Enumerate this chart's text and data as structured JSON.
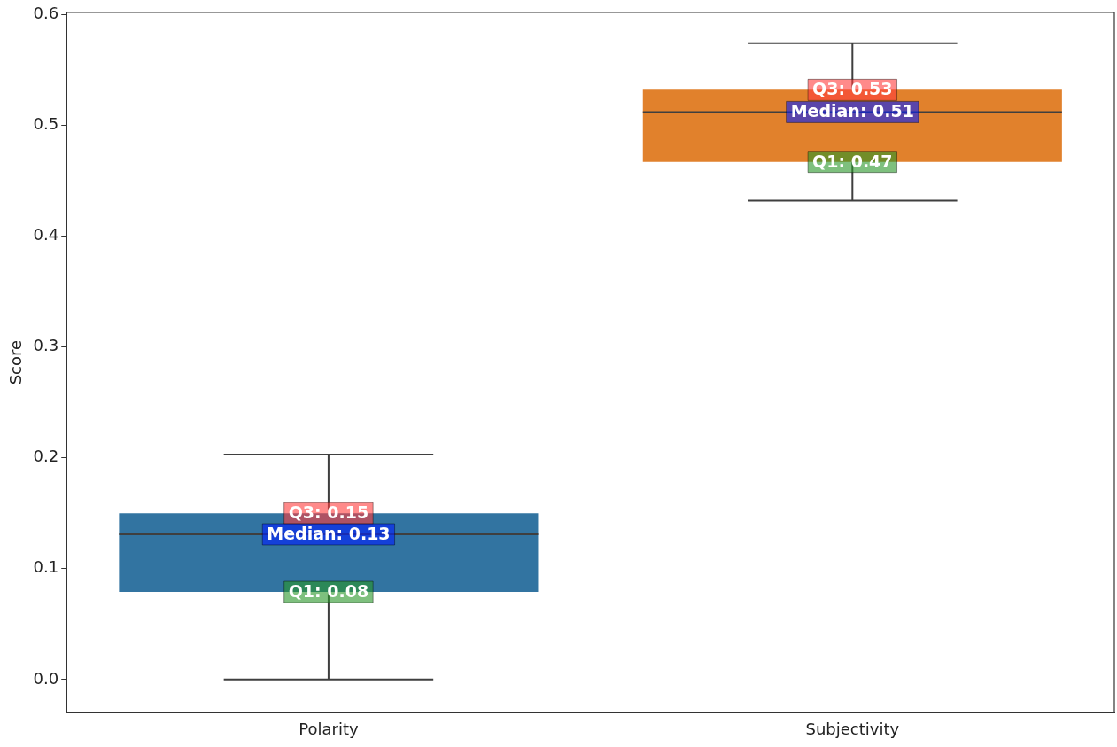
{
  "chart_data": {
    "type": "box",
    "ylabel": "Score",
    "categories": [
      "Polarity",
      "Subjectivity"
    ],
    "boxes": [
      {
        "low": 0.0,
        "q1": 0.079,
        "median": 0.131,
        "q3": 0.15,
        "high": 0.203
      },
      {
        "low": 0.432,
        "q1": 0.467,
        "median": 0.512,
        "q3": 0.532,
        "high": 0.574
      }
    ],
    "colors": [
      "#3274a1",
      "#e1812c"
    ],
    "ylim": [
      -0.03,
      0.602
    ],
    "yticks": [
      {
        "value": 0,
        "label": "0.0"
      },
      0.1,
      0.2,
      0.3,
      0.4,
      0.5,
      0.6
    ],
    "grid": false,
    "legend": false,
    "annotations": [
      {
        "text": "Q3: 0.15",
        "x": "Polarity",
        "y": 0.15
      },
      {
        "text": "Median: 0.13",
        "x": "Polarity",
        "y": 0.131
      },
      {
        "text": "Q1: 0.08",
        "x": "Polarity",
        "y": 0.079
      },
      {
        "text": "Q3: 0.53",
        "x": "Subjectivity",
        "y": 0.532
      },
      {
        "text": "Median: 0.51",
        "x": "Subjectivity",
        "y": 0.512
      },
      {
        "text": "Q1: 0.47",
        "x": "Subjectivity",
        "y": 0.467
      }
    ]
  }
}
